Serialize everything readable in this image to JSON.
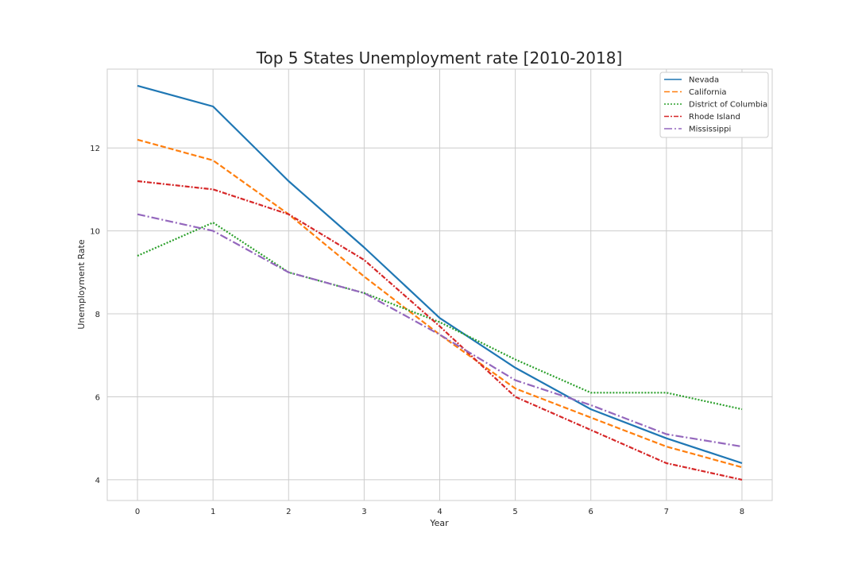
{
  "chart_data": {
    "type": "line",
    "title": "Top 5 States Unemployment rate [2010-2018]",
    "xlabel": "Year",
    "ylabel": "Unemployment Rate",
    "x": [
      0,
      1,
      2,
      3,
      4,
      5,
      6,
      7,
      8
    ],
    "xticks": [
      "0",
      "1",
      "2",
      "3",
      "4",
      "5",
      "6",
      "7",
      "8"
    ],
    "yticks": [
      4,
      6,
      8,
      10,
      12
    ],
    "xlim": [
      -0.4,
      8.4
    ],
    "ylim": [
      3.5,
      13.9
    ],
    "grid": true,
    "legend": "top-right",
    "series": [
      {
        "name": "Nevada",
        "color": "#1f77b4",
        "dash": "solid",
        "values": [
          13.5,
          13.0,
          11.2,
          9.6,
          7.9,
          6.7,
          5.7,
          5.0,
          4.4
        ]
      },
      {
        "name": "California",
        "color": "#ff7f0e",
        "dash": "dashed",
        "values": [
          12.2,
          11.7,
          10.4,
          8.9,
          7.5,
          6.2,
          5.5,
          4.8,
          4.3
        ]
      },
      {
        "name": "District of Columbia",
        "color": "#2ca02c",
        "dash": "dotted",
        "values": [
          9.4,
          10.2,
          9.0,
          8.5,
          7.8,
          6.9,
          6.1,
          6.1,
          5.7
        ]
      },
      {
        "name": "Rhode Island",
        "color": "#d62728",
        "dash": "dashdot",
        "values": [
          11.2,
          11.0,
          10.4,
          9.3,
          7.7,
          6.0,
          5.2,
          4.4,
          4.0
        ]
      },
      {
        "name": "Mississippi",
        "color": "#9467bd",
        "dash": "dashdotlong",
        "values": [
          10.4,
          10.0,
          9.0,
          8.5,
          7.5,
          6.4,
          5.8,
          5.1,
          4.8
        ]
      }
    ]
  }
}
